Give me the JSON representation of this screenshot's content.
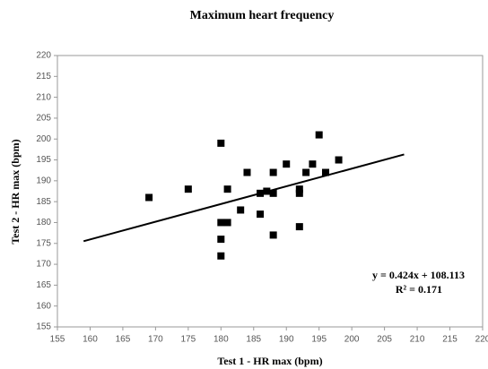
{
  "chart_data": {
    "type": "scatter",
    "title": "Maximum heart frequency",
    "x_label": "Test 1 - HR max (bpm)",
    "y_label": "Test 2 - HR max (bpm)",
    "x": [
      169,
      175,
      180,
      181,
      180,
      181,
      180,
      180,
      183,
      184,
      186,
      187,
      186,
      188,
      188,
      188,
      190,
      192,
      192,
      192,
      193,
      194,
      195,
      196,
      198
    ],
    "y": [
      186,
      188,
      199,
      188,
      180,
      180,
      176,
      172,
      183,
      192,
      187,
      187.5,
      182,
      192,
      187,
      177,
      194,
      188,
      187,
      179,
      192,
      194,
      201,
      192,
      195
    ],
    "color": "#000000",
    "xlim": [
      155,
      220
    ],
    "xticks": [
      155,
      160,
      165,
      170,
      175,
      180,
      185,
      190,
      195,
      200,
      205,
      210,
      215,
      220
    ],
    "ylim": [
      155,
      220
    ],
    "yticks": [
      155,
      160,
      165,
      170,
      175,
      180,
      185,
      190,
      195,
      200,
      205,
      210,
      215,
      220
    ],
    "trendline": {
      "slope": 0.424,
      "intercept": 108.113,
      "xrange": [
        159,
        208
      ]
    },
    "annotations": [
      "y = 0.424x + 108.113",
      "R² = 0.171"
    ]
  }
}
